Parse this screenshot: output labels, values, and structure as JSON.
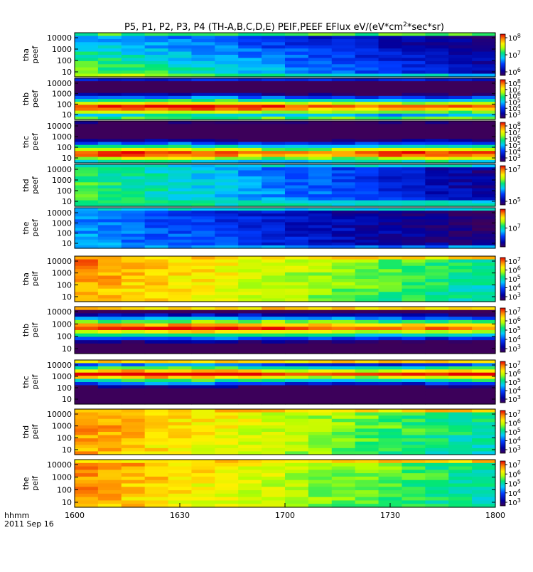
{
  "title": "P5, P1, P2, P3, P4 (TH-A,B,C,D,E) PEIF,PEEF EFlux eV/(eV*cm2*sec*sr)",
  "time_axis": {
    "ticks": [
      "1600",
      "1630",
      "1700",
      "1730",
      "1800"
    ],
    "label_line1": "hhmm",
    "label_line2": "2011 Sep 16"
  },
  "chart_data": [
    {
      "type": "heatmap",
      "probe": "tha",
      "species": "peef",
      "ylabel": [
        "tha",
        "peef"
      ],
      "yticks": [
        "10000",
        "1000",
        "100",
        "10"
      ],
      "xrange": [
        "1600",
        "1800"
      ],
      "cbar_ticks": [
        {
          "mant": "10",
          "exp": "8"
        },
        {
          "mant": "10",
          "exp": "7"
        },
        {
          "mant": "10",
          "exp": "6"
        }
      ],
      "pattern": "tha_e"
    },
    {
      "type": "heatmap",
      "probe": "thb",
      "species": "peef",
      "ylabel": [
        "thb",
        "peef"
      ],
      "yticks": [
        "10000",
        "1000",
        "100",
        "10"
      ],
      "xrange": [
        "1600",
        "1800"
      ],
      "cbar_ticks": [
        {
          "mant": "10",
          "exp": "8"
        },
        {
          "mant": "10",
          "exp": "7"
        },
        {
          "mant": "10",
          "exp": "6"
        },
        {
          "mant": "10",
          "exp": "5"
        },
        {
          "mant": "10",
          "exp": "4"
        },
        {
          "mant": "10",
          "exp": "3"
        }
      ],
      "pattern": "thb_e"
    },
    {
      "type": "heatmap",
      "probe": "thc",
      "species": "peef",
      "ylabel": [
        "thc",
        "peef"
      ],
      "yticks": [
        "10000",
        "1000",
        "100",
        "10"
      ],
      "xrange": [
        "1600",
        "1800"
      ],
      "cbar_ticks": [
        {
          "mant": "10",
          "exp": "8"
        },
        {
          "mant": "10",
          "exp": "7"
        },
        {
          "mant": "10",
          "exp": "6"
        },
        {
          "mant": "10",
          "exp": "5"
        },
        {
          "mant": "10",
          "exp": "4"
        },
        {
          "mant": "10",
          "exp": "3"
        }
      ],
      "pattern": "thc_e"
    },
    {
      "type": "heatmap",
      "probe": "thd",
      "species": "peef",
      "ylabel": [
        "thd",
        "peef"
      ],
      "yticks": [
        "10000",
        "1000",
        "100",
        "10"
      ],
      "xrange": [
        "1600",
        "1800"
      ],
      "cbar_ticks": [
        {
          "mant": "10",
          "exp": "7"
        },
        {
          "mant": "10",
          "exp": "5"
        }
      ],
      "pattern": "thd_e"
    },
    {
      "type": "heatmap",
      "probe": "the",
      "species": "peef",
      "ylabel": [
        "the",
        "peef"
      ],
      "yticks": [
        "10000",
        "1000",
        "100",
        "10"
      ],
      "xrange": [
        "1600",
        "1800"
      ],
      "cbar_ticks": [
        {
          "mant": "10",
          "exp": "7"
        }
      ],
      "pattern": "the_e"
    },
    {
      "type": "heatmap",
      "probe": "tha",
      "species": "peif",
      "ylabel": [
        "tha",
        "peif"
      ],
      "yticks": [
        "10000",
        "1000",
        "100",
        "10"
      ],
      "xrange": [
        "1600",
        "1800"
      ],
      "cbar_ticks": [
        {
          "mant": "10",
          "exp": "7"
        },
        {
          "mant": "10",
          "exp": "6"
        },
        {
          "mant": "10",
          "exp": "5"
        },
        {
          "mant": "10",
          "exp": "4"
        },
        {
          "mant": "10",
          "exp": "3"
        }
      ],
      "pattern": "ion_warm"
    },
    {
      "type": "heatmap",
      "probe": "thb",
      "species": "peif",
      "ylabel": [
        "thb",
        "peif"
      ],
      "yticks": [
        "10000",
        "1000",
        "100",
        "10"
      ],
      "xrange": [
        "1600",
        "1800"
      ],
      "cbar_ticks": [
        {
          "mant": "10",
          "exp": "7"
        },
        {
          "mant": "10",
          "exp": "6"
        },
        {
          "mant": "10",
          "exp": "5"
        },
        {
          "mant": "10",
          "exp": "4"
        },
        {
          "mant": "10",
          "exp": "3"
        }
      ],
      "pattern": "ion_band"
    },
    {
      "type": "heatmap",
      "probe": "thc",
      "species": "peif",
      "ylabel": [
        "thc",
        "peif"
      ],
      "yticks": [
        "10000",
        "1000",
        "100",
        "10"
      ],
      "xrange": [
        "1600",
        "1800"
      ],
      "cbar_ticks": [
        {
          "mant": "10",
          "exp": "7"
        },
        {
          "mant": "10",
          "exp": "6"
        },
        {
          "mant": "10",
          "exp": "5"
        },
        {
          "mant": "10",
          "exp": "4"
        },
        {
          "mant": "10",
          "exp": "3"
        }
      ],
      "pattern": "ion_band2"
    },
    {
      "type": "heatmap",
      "probe": "thd",
      "species": "peif",
      "ylabel": [
        "thd",
        "peif"
      ],
      "yticks": [
        "10000",
        "1000",
        "100",
        "10"
      ],
      "xrange": [
        "1600",
        "1800"
      ],
      "cbar_ticks": [
        {
          "mant": "10",
          "exp": "7"
        },
        {
          "mant": "10",
          "exp": "6"
        },
        {
          "mant": "10",
          "exp": "5"
        },
        {
          "mant": "10",
          "exp": "4"
        },
        {
          "mant": "10",
          "exp": "3"
        }
      ],
      "pattern": "ion_warm"
    },
    {
      "type": "heatmap",
      "probe": "the",
      "species": "peif",
      "ylabel": [
        "the",
        "peif"
      ],
      "yticks": [
        "10000",
        "1000",
        "100",
        "10"
      ],
      "xrange": [
        "1600",
        "1800"
      ],
      "cbar_ticks": [
        {
          "mant": "10",
          "exp": "7"
        },
        {
          "mant": "10",
          "exp": "6"
        },
        {
          "mant": "10",
          "exp": "5"
        },
        {
          "mant": "10",
          "exp": "4"
        },
        {
          "mant": "10",
          "exp": "3"
        }
      ],
      "pattern": "ion_warm"
    }
  ]
}
